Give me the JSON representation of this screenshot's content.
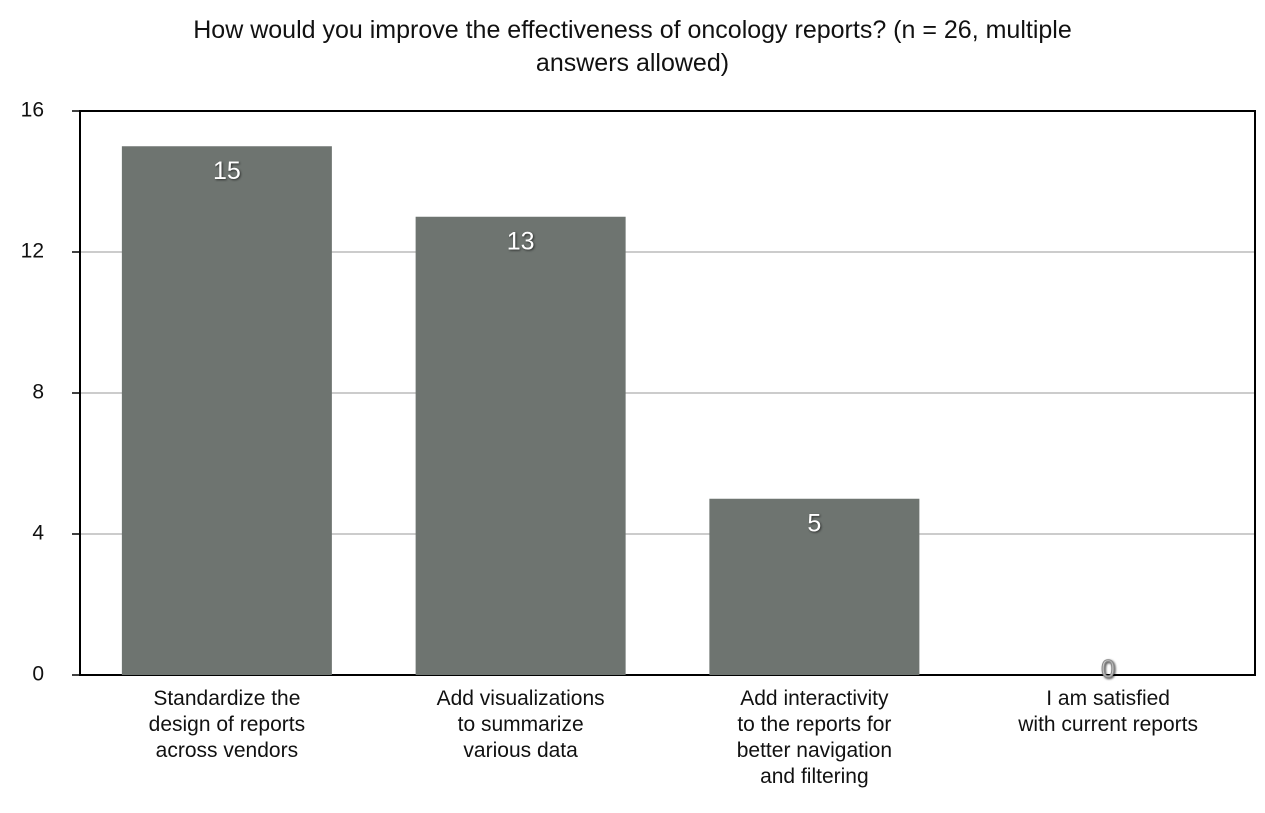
{
  "chart_data": {
    "type": "bar",
    "title": "How would you improve the effectiveness of oncology reports? (n = 26, multiple\nanswers allowed)",
    "categories": [
      "Standardize the\ndesign of reports\nacross vendors",
      "Add visualizations\nto summarize\nvarious data",
      "Add interactivity\nto the reports for\nbetter navigation\nand filtering",
      "I am satisfied\nwith current reports"
    ],
    "values": [
      15,
      13,
      5,
      0
    ],
    "color": "#6e7470",
    "ylim": [
      0,
      16
    ],
    "yticks": [
      0,
      4,
      8,
      12,
      16
    ],
    "grid": true
  }
}
